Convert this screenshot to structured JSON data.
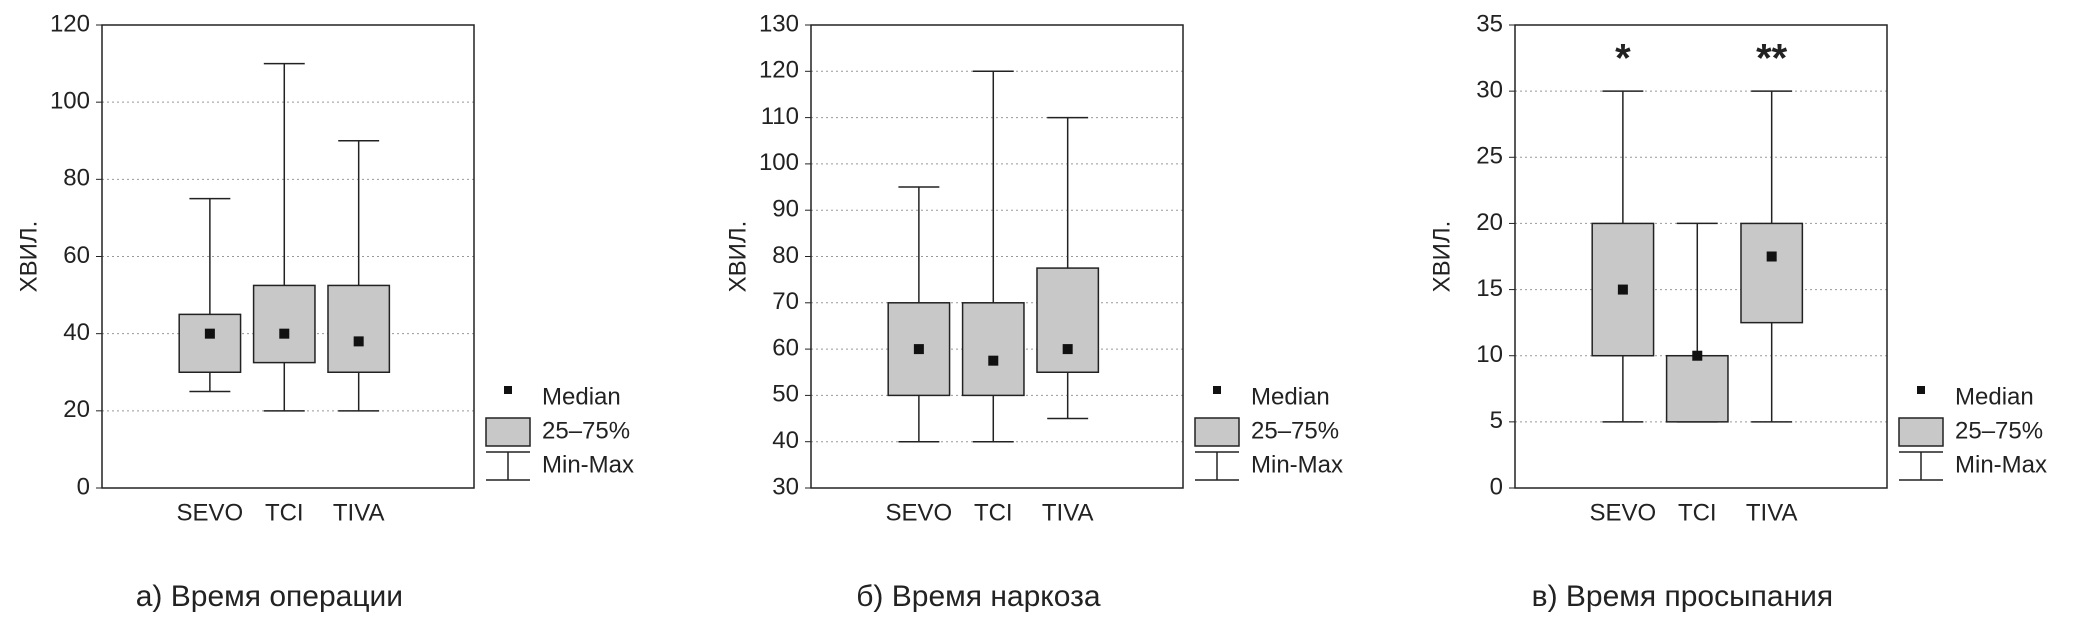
{
  "chart_data": [
    {
      "type": "box",
      "ylabel": "ХВИЛ.",
      "caption": "а) Время операции",
      "categories": [
        "SEVO",
        "TCI",
        "TIVA"
      ],
      "min": [
        25,
        20,
        20
      ],
      "q1": [
        30,
        32.5,
        30
      ],
      "median": [
        40,
        40,
        38
      ],
      "q3": [
        45,
        52.5,
        52.5
      ],
      "max": [
        75,
        110,
        90
      ],
      "color": "#c8c8c8",
      "ylim": [
        0,
        120
      ],
      "yticks": [
        0,
        20,
        40,
        60,
        80,
        100,
        120
      ],
      "grid": true,
      "legend": [
        "Median",
        "25–75%",
        "Min-Max"
      ],
      "annotations": []
    },
    {
      "type": "box",
      "ylabel": "ХВИЛ.",
      "caption": "б) Время наркоза",
      "categories": [
        "SEVO",
        "TCI",
        "TIVA"
      ],
      "min": [
        40,
        40,
        45
      ],
      "q1": [
        50,
        50,
        55
      ],
      "median": [
        60,
        57.5,
        60
      ],
      "q3": [
        70,
        70,
        77.5
      ],
      "max": [
        95,
        120,
        110
      ],
      "color": "#c8c8c8",
      "ylim": [
        30,
        130
      ],
      "yticks": [
        30,
        40,
        50,
        60,
        70,
        80,
        90,
        100,
        110,
        120,
        130
      ],
      "grid": true,
      "legend": [
        "Median",
        "25–75%",
        "Min-Max"
      ],
      "annotations": []
    },
    {
      "type": "box",
      "ylabel": "ХВИЛ.",
      "caption": "в) Время просыпания",
      "categories": [
        "SEVO",
        "TCI",
        "TIVA"
      ],
      "min": [
        5,
        5,
        5
      ],
      "q1": [
        10,
        5,
        12.5
      ],
      "median": [
        15,
        10,
        17.5
      ],
      "q3": [
        20,
        10,
        20
      ],
      "max": [
        30,
        20,
        30
      ],
      "color": "#c8c8c8",
      "ylim": [
        0,
        35
      ],
      "yticks": [
        0,
        5,
        10,
        15,
        20,
        25,
        30,
        35
      ],
      "grid": true,
      "legend": [
        "Median",
        "25–75%",
        "Min-Max"
      ],
      "annotations": [
        {
          "text": "*",
          "x": "SEVO"
        },
        {
          "text": "**",
          "x": "TIVA"
        }
      ]
    }
  ]
}
